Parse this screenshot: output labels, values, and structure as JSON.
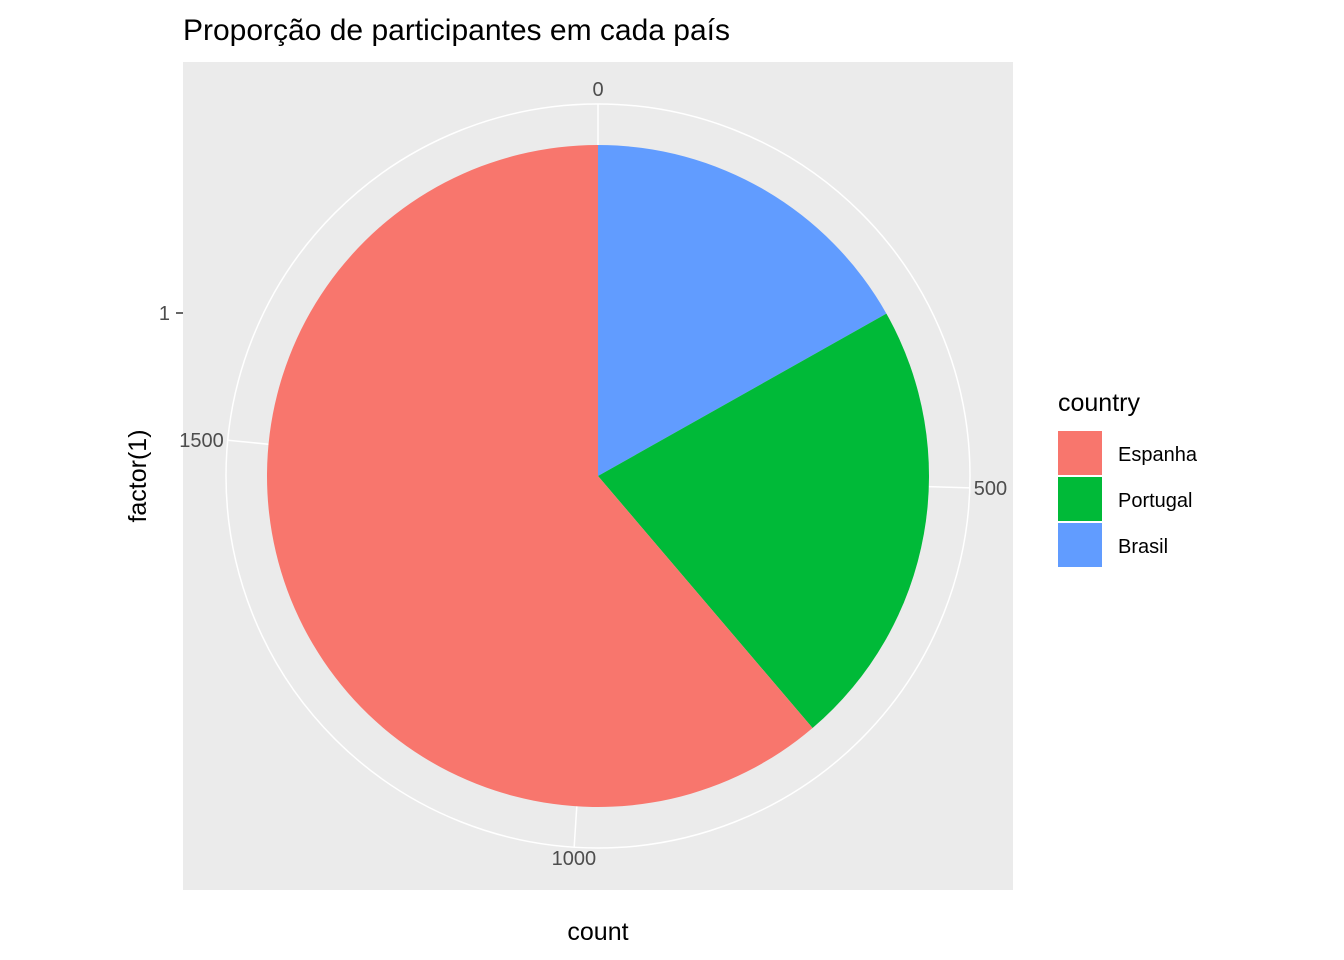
{
  "chart_data": {
    "type": "pie",
    "title": "Proporção de participantes em cada país",
    "xlabel": "count",
    "ylabel": "factor(1)",
    "y_tick_labels": [
      "1"
    ],
    "radial_ticks": [
      {
        "value": 0,
        "label": "0"
      },
      {
        "value": 500,
        "label": "500"
      },
      {
        "value": 1000,
        "label": "1000"
      },
      {
        "value": 1500,
        "label": "1500"
      }
    ],
    "total": 1960,
    "legend_title": "country",
    "legend_position": "right",
    "grid": true,
    "slices": [
      {
        "label": "Brasil",
        "value": 330,
        "color": "#619CFF"
      },
      {
        "label": "Portugal",
        "value": 430,
        "color": "#00BA38"
      },
      {
        "label": "Espanha",
        "value": 1200,
        "color": "#F8766D"
      }
    ],
    "legend_order": [
      "Espanha",
      "Portugal",
      "Brasil"
    ],
    "panel_background": "#EBEBEB",
    "grid_color": "#FFFFFF"
  }
}
